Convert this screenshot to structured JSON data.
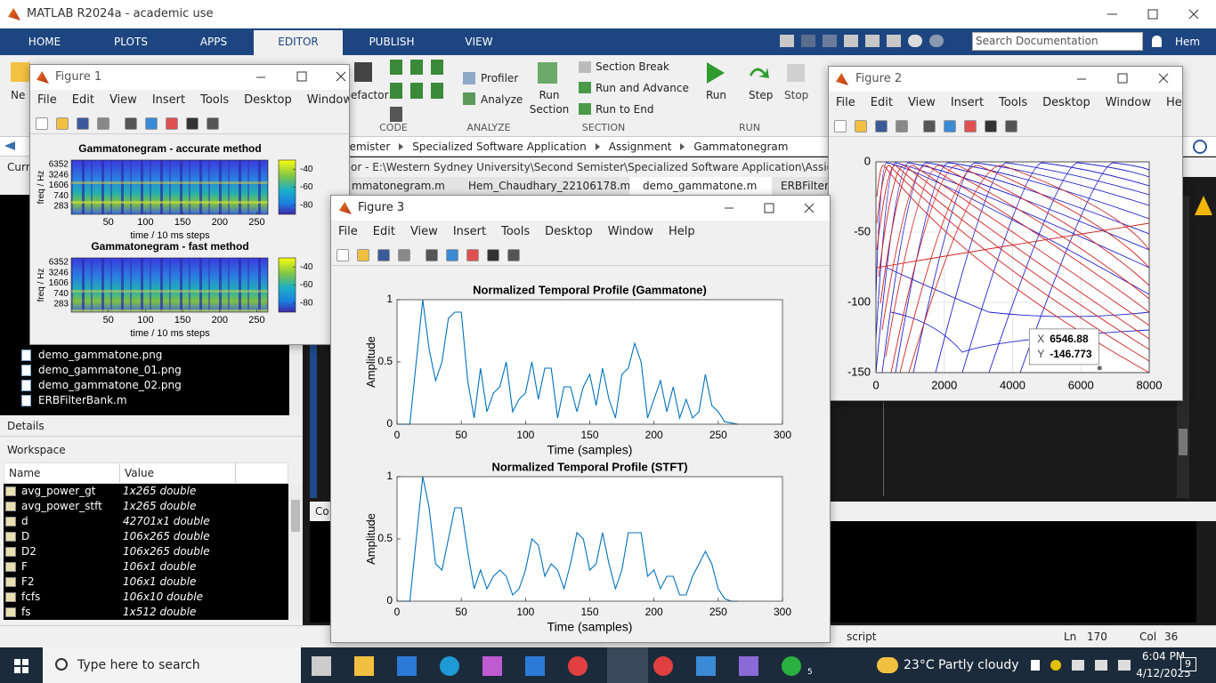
{
  "window": {
    "title": "MATLAB R2024a - academic use"
  },
  "ribbon": {
    "tabs": [
      "HOME",
      "PLOTS",
      "APPS",
      "EDITOR",
      "PUBLISH",
      "VIEW"
    ],
    "search": "Search Documentation",
    "user": "Hem",
    "buttons": {
      "new": "Ne",
      "refactor": "efactor",
      "profiler": "Profiler",
      "analyze": "Analyze",
      "run_section": [
        "Run",
        "Section"
      ],
      "section_break": "Section Break",
      "run_and_advance": "Run and Advance",
      "run_to_end": "Run to End",
      "run": "Run",
      "step": "Step",
      "stop": "Stop"
    },
    "sections": [
      "CODE",
      "ANALYZE",
      "SECTION",
      "RUN"
    ]
  },
  "editor": {
    "breadcrumb": [
      "Semister",
      "Specialized Software Application",
      "Assignment",
      "Gammatonegram"
    ],
    "path": "or - E:\\Western Sydney University\\Second Semister\\Specialized Software Application\\Assignment\\Gran",
    "tabs": [
      "mmatonegram.m",
      "Hem_Chaudhary_22106178.m",
      "demo_gammatone.m",
      "ERBFilterB"
    ]
  },
  "current_folder": {
    "label": "Curr",
    "files": [
      "demo_gammatone.png",
      "demo_gammatone_01.png",
      "demo_gammatone_02.png",
      "ERBFilterBank.m"
    ]
  },
  "details": "Details",
  "workspace": {
    "title": "Workspace",
    "columns": [
      "Name",
      "Value"
    ],
    "rows": [
      [
        "avg_power_gt",
        "1x265 double"
      ],
      [
        "avg_power_stft",
        "1x265 double"
      ],
      [
        "d",
        "42701x1 double"
      ],
      [
        "D",
        "106x265 double"
      ],
      [
        "D2",
        "106x265 double"
      ],
      [
        "F",
        "106x1 double"
      ],
      [
        "F2",
        "106x1 double"
      ],
      [
        "fcfs",
        "106x10 double"
      ],
      [
        "fs",
        "1x512 double"
      ]
    ]
  },
  "command_window": {
    "label": "Co"
  },
  "status_bar": {
    "mode": "script",
    "ln_label": "Ln",
    "ln": 170,
    "col_label": "Col",
    "col": 36
  },
  "figure1": {
    "title": "Figure 1",
    "menu": [
      "File",
      "Edit",
      "View",
      "Insert",
      "Tools",
      "Desktop",
      "Window",
      "Help"
    ],
    "plots": [
      {
        "title": "Gammatonegram - accurate method",
        "ylabel": "freq / Hz",
        "yticks": [
          6352,
          3246,
          1606,
          740,
          283
        ],
        "xlim": [
          0,
          265
        ],
        "xticks": [
          50,
          100,
          150,
          200,
          250
        ],
        "xlabel": "time / 10 ms steps",
        "clim": [
          -90,
          -30
        ],
        "cticks": [
          -40,
          -60,
          -80
        ]
      },
      {
        "title": "Gammatonegram - fast method",
        "ylabel": "freq / Hz",
        "yticks": [
          6352,
          3246,
          1606,
          740,
          283
        ],
        "xlim": [
          0,
          265
        ],
        "xticks": [
          50,
          100,
          150,
          200,
          250
        ],
        "xlabel": "time / 10 ms steps",
        "clim": [
          -90,
          -30
        ],
        "cticks": [
          -40,
          -60,
          -80
        ]
      }
    ]
  },
  "figure2": {
    "title": "Figure 2",
    "menu": [
      "File",
      "Edit",
      "View",
      "Insert",
      "Tools",
      "Desktop",
      "Window",
      "Help"
    ],
    "chart_data": {
      "type": "line",
      "xlim": [
        0,
        8000
      ],
      "xticks": [
        0,
        2000,
        4000,
        6000,
        8000
      ],
      "ylim": [
        -150,
        0
      ],
      "yticks": [
        0,
        -50,
        -100,
        -150
      ],
      "grid": true,
      "datatip": {
        "x_label": "X",
        "x": 6546.88,
        "y_label": "Y",
        "y": -146.773
      }
    }
  },
  "figure3": {
    "title": "Figure 3",
    "menu": [
      "File",
      "Edit",
      "View",
      "Insert",
      "Tools",
      "Desktop",
      "Window",
      "Help"
    ],
    "chart_data": [
      {
        "type": "line",
        "title": "Normalized Temporal Profile (Gammatone)",
        "xlabel": "Time (samples)",
        "ylabel": "Amplitude",
        "color": "#0072bd",
        "xlim": [
          0,
          300
        ],
        "xticks": [
          0,
          50,
          100,
          150,
          200,
          250,
          300
        ],
        "ylim": [
          0,
          1
        ],
        "yticks": [
          0,
          0.5,
          1
        ],
        "x": [
          0,
          5,
          10,
          15,
          20,
          25,
          30,
          35,
          40,
          45,
          50,
          55,
          60,
          65,
          70,
          75,
          80,
          85,
          90,
          95,
          100,
          105,
          110,
          115,
          120,
          125,
          130,
          135,
          140,
          145,
          150,
          155,
          160,
          165,
          170,
          175,
          180,
          185,
          190,
          195,
          200,
          205,
          210,
          215,
          220,
          225,
          230,
          235,
          240,
          245,
          250,
          255,
          260,
          265
        ],
        "values": [
          0,
          0,
          0,
          0.5,
          1,
          0.6,
          0.35,
          0.5,
          0.85,
          0.9,
          0.9,
          0.35,
          0.05,
          0.45,
          0.1,
          0.25,
          0.3,
          0.5,
          0.1,
          0.2,
          0.25,
          0.5,
          0.2,
          0.45,
          0.45,
          0.05,
          0.3,
          0.3,
          0.1,
          0.3,
          0.4,
          0.15,
          0.45,
          0.2,
          0.05,
          0.4,
          0.45,
          0.65,
          0.5,
          0.05,
          0.2,
          0.35,
          0.1,
          0.3,
          0.05,
          0.2,
          0.05,
          0.1,
          0.4,
          0.15,
          0.1,
          0.02,
          0.01,
          0
        ]
      },
      {
        "type": "line",
        "title": "Normalized Temporal Profile (STFT)",
        "xlabel": "Time (samples)",
        "ylabel": "Amplitude",
        "color": "#0072bd",
        "xlim": [
          0,
          300
        ],
        "xticks": [
          0,
          50,
          100,
          150,
          200,
          250,
          300
        ],
        "ylim": [
          0,
          1
        ],
        "yticks": [
          0,
          0.5,
          1
        ],
        "x": [
          0,
          5,
          10,
          15,
          20,
          25,
          30,
          35,
          40,
          45,
          50,
          55,
          60,
          65,
          70,
          75,
          80,
          85,
          90,
          95,
          100,
          105,
          110,
          115,
          120,
          125,
          130,
          135,
          140,
          145,
          150,
          155,
          160,
          165,
          170,
          175,
          180,
          185,
          190,
          195,
          200,
          205,
          210,
          215,
          220,
          225,
          230,
          235,
          240,
          245,
          250,
          255,
          260,
          265
        ],
        "values": [
          0,
          0,
          0,
          0.5,
          1,
          0.75,
          0.3,
          0.25,
          0.5,
          0.75,
          0.75,
          0.4,
          0.1,
          0.25,
          0.1,
          0.2,
          0.25,
          0.2,
          0.05,
          0.1,
          0.25,
          0.5,
          0.45,
          0.2,
          0.3,
          0.25,
          0.1,
          0.3,
          0.55,
          0.5,
          0.25,
          0.3,
          0.55,
          0.3,
          0.1,
          0.25,
          0.55,
          0.55,
          0.55,
          0.2,
          0.25,
          0.1,
          0.2,
          0.2,
          0.05,
          0.05,
          0.2,
          0.3,
          0.4,
          0.3,
          0.1,
          0.02,
          0,
          0
        ]
      }
    ]
  },
  "taskbar": {
    "search": "Type here to search",
    "weather": "23°C  Partly cloudy",
    "time": "6:04 PM",
    "date": "4/12/2025",
    "notifications": 9,
    "whatsapp_badge": 5
  }
}
